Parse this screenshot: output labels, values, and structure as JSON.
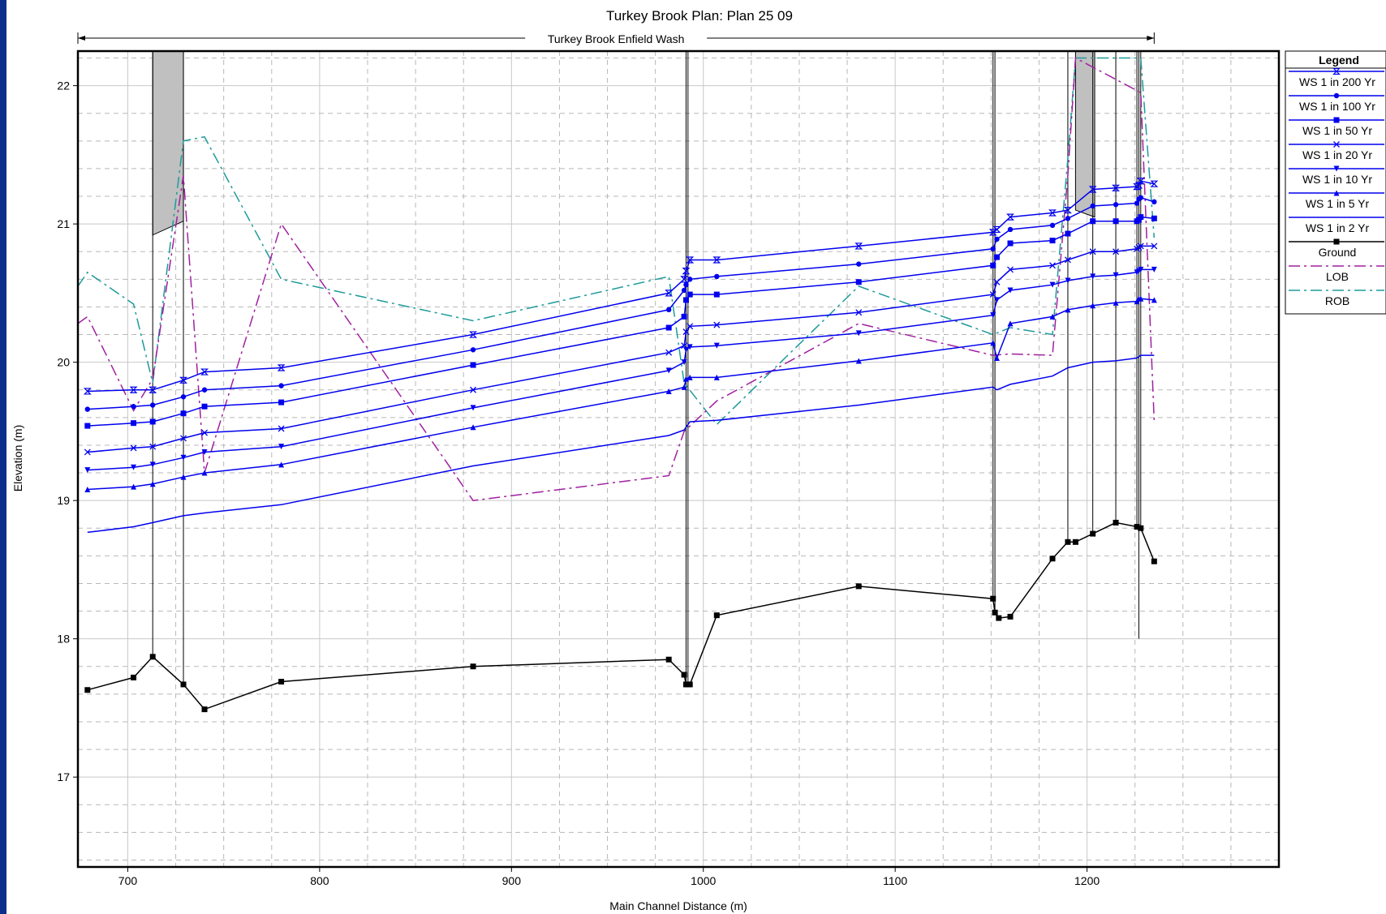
{
  "chart_data": {
    "type": "line",
    "title": "Turkey Brook       Plan: Plan 25    09",
    "reach_label": "Turkey Brook Enfield Wash",
    "xlabel": "Main Channel Distance (m)",
    "ylabel": "Elevation (m)",
    "xlim": [
      674,
      1300
    ],
    "ylim": [
      16.35,
      22.25
    ],
    "x_ticks": [
      700,
      800,
      900,
      1000,
      1100,
      1200
    ],
    "y_ticks": [
      17,
      18,
      19,
      20,
      21,
      22
    ],
    "grid": true,
    "legend_title": "Legend",
    "legend_position": "right",
    "reach_extent": [
      674,
      1235
    ],
    "bridges": [
      {
        "x_left": 713,
        "x_right": 729,
        "low_chord_left": 20.92,
        "low_chord_right": 21.02
      },
      {
        "x_left": 1194,
        "x_right": 1204,
        "low_chord_left": 21.1,
        "low_chord_right": 21.05
      }
    ],
    "series": [
      {
        "name": "WS  1 in 200 Yr",
        "color": "#0000ee",
        "style": "solid",
        "marker": "hourglass",
        "x": [
          679,
          703,
          713,
          729,
          740,
          780,
          880,
          982,
          990,
          991,
          993,
          1007,
          1081,
          1151,
          1153,
          1160,
          1182,
          1190,
          1203,
          1215,
          1226,
          1227,
          1228,
          1235
        ],
        "y": [
          19.79,
          19.8,
          19.8,
          19.87,
          19.93,
          19.96,
          20.2,
          20.5,
          20.6,
          20.66,
          20.74,
          20.74,
          20.84,
          20.94,
          20.96,
          21.05,
          21.08,
          21.1,
          21.25,
          21.26,
          21.27,
          21.28,
          21.31,
          21.29
        ]
      },
      {
        "name": "WS  1 in 100 Yr",
        "color": "#0000ee",
        "style": "solid",
        "marker": "circle",
        "x": [
          679,
          703,
          713,
          729,
          740,
          780,
          880,
          982,
          990,
          991,
          993,
          1007,
          1081,
          1151,
          1153,
          1160,
          1182,
          1190,
          1203,
          1215,
          1226,
          1227,
          1228,
          1235
        ],
        "y": [
          19.66,
          19.68,
          19.69,
          19.75,
          19.8,
          19.83,
          20.09,
          20.38,
          20.52,
          20.56,
          20.6,
          20.62,
          20.71,
          20.82,
          20.89,
          20.96,
          20.99,
          21.04,
          21.13,
          21.14,
          21.15,
          21.18,
          21.19,
          21.16
        ]
      },
      {
        "name": "WS  1 in 50 Yr",
        "color": "#0000ee",
        "style": "solid",
        "marker": "square",
        "x": [
          679,
          703,
          713,
          729,
          740,
          780,
          880,
          982,
          990,
          991,
          993,
          1007,
          1081,
          1151,
          1153,
          1160,
          1182,
          1190,
          1203,
          1215,
          1226,
          1227,
          1228,
          1235
        ],
        "y": [
          19.54,
          19.56,
          19.57,
          19.63,
          19.68,
          19.71,
          19.98,
          20.25,
          20.33,
          20.45,
          20.49,
          20.49,
          20.58,
          20.7,
          20.76,
          20.86,
          20.88,
          20.93,
          21.02,
          21.02,
          21.02,
          21.03,
          21.05,
          21.04
        ]
      },
      {
        "name": "WS  1 in 20 Yr",
        "color": "#0000ee",
        "style": "solid",
        "marker": "x",
        "x": [
          679,
          703,
          713,
          729,
          740,
          780,
          880,
          982,
          990,
          991,
          993,
          1007,
          1081,
          1151,
          1153,
          1160,
          1182,
          1190,
          1203,
          1215,
          1226,
          1227,
          1228,
          1235
        ],
        "y": [
          19.35,
          19.38,
          19.39,
          19.45,
          19.49,
          19.52,
          19.8,
          20.07,
          20.12,
          20.22,
          20.26,
          20.27,
          20.36,
          20.49,
          20.58,
          20.67,
          20.7,
          20.74,
          20.8,
          20.8,
          20.82,
          20.83,
          20.84,
          20.84
        ]
      },
      {
        "name": "WS  1 in 10 Yr",
        "color": "#0000ee",
        "style": "solid",
        "marker": "triangle-down",
        "x": [
          679,
          703,
          713,
          729,
          740,
          780,
          880,
          982,
          990,
          991,
          993,
          1007,
          1081,
          1151,
          1153,
          1160,
          1182,
          1190,
          1203,
          1215,
          1226,
          1227,
          1228,
          1235
        ],
        "y": [
          19.22,
          19.24,
          19.26,
          19.31,
          19.35,
          19.39,
          19.67,
          19.94,
          20.0,
          20.09,
          20.11,
          20.12,
          20.21,
          20.34,
          20.45,
          20.52,
          20.56,
          20.59,
          20.62,
          20.63,
          20.65,
          20.66,
          20.67,
          20.67
        ]
      },
      {
        "name": "WS  1 in 5 Yr",
        "color": "#0000ee",
        "style": "solid",
        "marker": "triangle-up",
        "x": [
          679,
          703,
          713,
          729,
          740,
          780,
          880,
          982,
          990,
          991,
          993,
          1007,
          1081,
          1151,
          1153,
          1160,
          1182,
          1190,
          1203,
          1215,
          1226,
          1227,
          1228,
          1235
        ],
        "y": [
          19.08,
          19.1,
          19.12,
          19.17,
          19.2,
          19.26,
          19.53,
          19.79,
          19.82,
          19.88,
          19.89,
          19.89,
          20.01,
          20.14,
          20.03,
          20.28,
          20.33,
          20.38,
          20.41,
          20.43,
          20.44,
          20.46,
          20.46,
          20.45
        ]
      },
      {
        "name": "WS  1 in 2 Yr",
        "color": "#0000ee",
        "style": "solid",
        "marker": "none",
        "x": [
          679,
          703,
          713,
          729,
          740,
          780,
          880,
          982,
          990,
          993,
          1007,
          1081,
          1151,
          1153,
          1160,
          1182,
          1190,
          1203,
          1215,
          1226,
          1228,
          1235
        ],
        "y": [
          18.77,
          18.81,
          18.84,
          18.89,
          18.91,
          18.97,
          19.25,
          19.47,
          19.51,
          19.57,
          19.58,
          19.69,
          19.82,
          19.8,
          19.84,
          19.9,
          19.96,
          20.0,
          20.01,
          20.03,
          20.05,
          20.05
        ]
      },
      {
        "name": "Ground",
        "color": "#000000",
        "style": "solid",
        "marker": "square",
        "x": [
          679,
          703,
          713,
          729,
          740,
          780,
          880,
          982,
          990,
          991,
          992,
          993,
          1007,
          1081,
          1151,
          1152,
          1154,
          1160,
          1182,
          1190,
          1194,
          1203,
          1215,
          1226,
          1228,
          1235
        ],
        "y": [
          17.63,
          17.72,
          17.87,
          17.67,
          17.49,
          17.69,
          17.8,
          17.85,
          17.74,
          17.67,
          17.67,
          17.67,
          18.17,
          18.38,
          18.29,
          18.19,
          18.15,
          18.16,
          18.58,
          18.7,
          18.7,
          18.76,
          18.84,
          18.81,
          18.8,
          18.56
        ]
      },
      {
        "name": "LOB",
        "color": "#a020a0",
        "style": "dashdot",
        "marker": "none",
        "x": [
          674,
          679,
          703,
          713,
          729,
          740,
          780,
          880,
          982,
          990,
          1007,
          1081,
          1151,
          1160,
          1182,
          1190,
          1194,
          1228,
          1235
        ],
        "y": [
          20.28,
          20.33,
          19.65,
          19.88,
          21.35,
          19.2,
          21.0,
          19.0,
          19.18,
          19.5,
          19.72,
          20.28,
          20.05,
          20.06,
          20.05,
          21.35,
          22.2,
          21.95,
          19.58
        ]
      },
      {
        "name": "ROB",
        "color": "#1e9a9a",
        "style": "dashdot",
        "marker": "none",
        "x": [
          674,
          679,
          703,
          713,
          729,
          740,
          780,
          880,
          982,
          990,
          1007,
          1081,
          1151,
          1160,
          1182,
          1190,
          1194,
          1228,
          1235
        ],
        "y": [
          20.55,
          20.65,
          20.42,
          19.85,
          21.6,
          21.63,
          20.6,
          20.3,
          20.62,
          19.85,
          19.55,
          20.55,
          20.2,
          20.25,
          20.2,
          21.47,
          22.2,
          22.2,
          20.9
        ]
      }
    ]
  }
}
